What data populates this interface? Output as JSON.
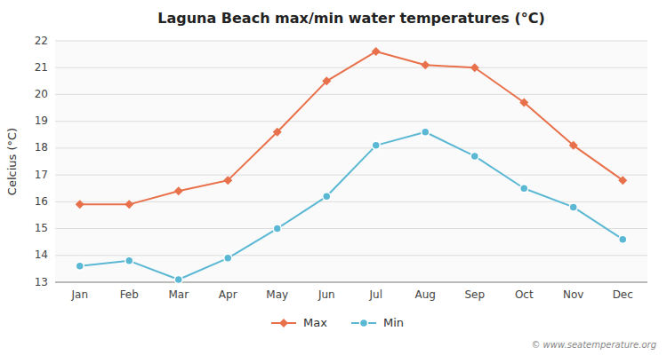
{
  "chart_data": {
    "type": "line",
    "title": "Laguna Beach max/min water temperatures (°C)",
    "ylabel": "Celcius (°C)",
    "annotations": [
      "© www.seatemperature.org"
    ],
    "categories": [
      "Jan",
      "Feb",
      "Mar",
      "Apr",
      "May",
      "Jun",
      "Jul",
      "Aug",
      "Sep",
      "Oct",
      "Nov",
      "Dec"
    ],
    "series": [
      {
        "name": "Max",
        "color": "#e8704a",
        "marker": "diamond",
        "line_style": "solid",
        "values": [
          15.9,
          15.9,
          16.4,
          16.8,
          18.6,
          20.5,
          21.6,
          21.1,
          21.0,
          19.7,
          18.1,
          16.8
        ]
      },
      {
        "name": "Min",
        "color": "#5bb8d4",
        "marker": "circle",
        "line_style": "solid",
        "values": [
          13.6,
          13.8,
          13.1,
          13.9,
          15.0,
          16.2,
          18.1,
          18.6,
          17.7,
          16.5,
          15.8,
          14.6
        ]
      }
    ],
    "ylim": [
      13,
      22
    ],
    "yticks": [
      13,
      14,
      15,
      16,
      17,
      18,
      19,
      20,
      21,
      22
    ],
    "grid": true,
    "legend": "bottom"
  }
}
